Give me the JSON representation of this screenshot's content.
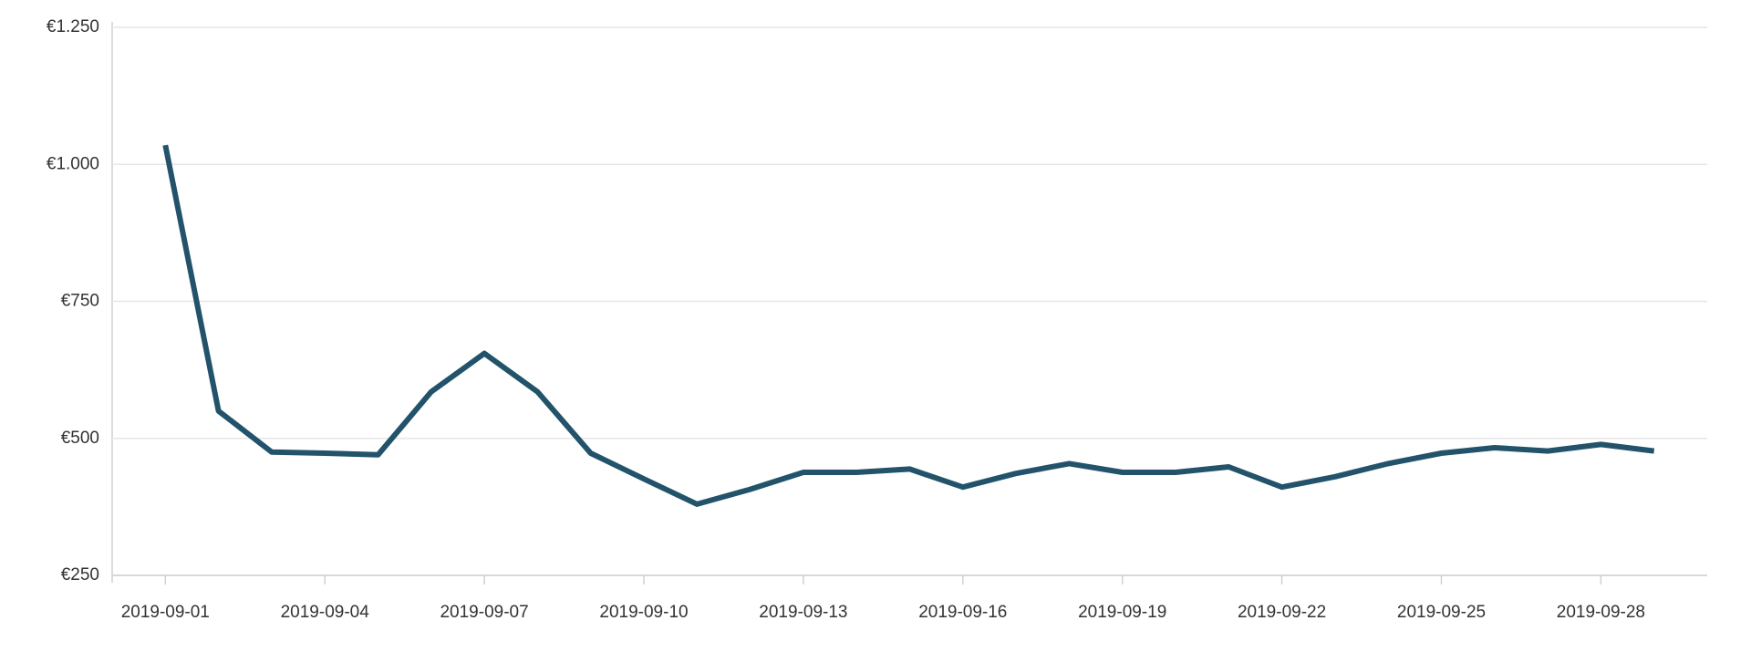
{
  "chart_data": {
    "type": "line",
    "x": [
      "2019-09-01",
      "2019-09-02",
      "2019-09-03",
      "2019-09-04",
      "2019-09-05",
      "2019-09-06",
      "2019-09-07",
      "2019-09-08",
      "2019-09-09",
      "2019-09-10",
      "2019-09-11",
      "2019-09-12",
      "2019-09-13",
      "2019-09-14",
      "2019-09-15",
      "2019-09-16",
      "2019-09-17",
      "2019-09-18",
      "2019-09-19",
      "2019-09-20",
      "2019-09-21",
      "2019-09-22",
      "2019-09-23",
      "2019-09-24",
      "2019-09-25",
      "2019-09-26",
      "2019-09-27",
      "2019-09-28",
      "2019-09-29"
    ],
    "series": [
      {
        "color": "#22536a",
        "values": [
          1035,
          550,
          475,
          473,
          470,
          585,
          655,
          585,
          473,
          426,
          380,
          407,
          438,
          438,
          444,
          411,
          436,
          454,
          438,
          438,
          448,
          411,
          430,
          454,
          473,
          483,
          477,
          489,
          477
        ]
      }
    ],
    "xlim": [
      "2019-08-31",
      "2019-09-30"
    ],
    "xticks": [
      "2019-09-01",
      "2019-09-04",
      "2019-09-07",
      "2019-09-10",
      "2019-09-13",
      "2019-09-16",
      "2019-09-19",
      "2019-09-22",
      "2019-09-25",
      "2019-09-28"
    ],
    "ylim": [
      250,
      1250
    ],
    "yticks": [
      {
        "value": 250,
        "label": "€250"
      },
      {
        "value": 500,
        "label": "€500"
      },
      {
        "value": 750,
        "label": "€750"
      },
      {
        "value": 1000,
        "label": "€1.000"
      },
      {
        "value": 1250,
        "label": "€1.250"
      }
    ],
    "grid": true
  }
}
